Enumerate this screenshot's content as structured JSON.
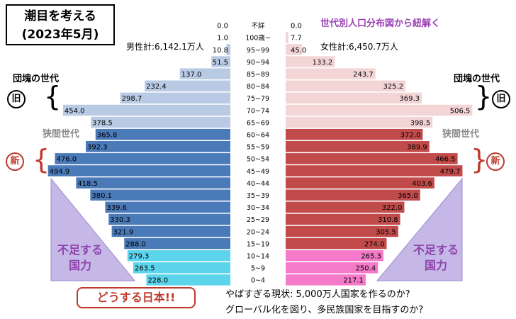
{
  "title_line1": "潮目を考える",
  "title_line2": "(2023年5月)",
  "subtitle": "世代別人口分布図から紐解く",
  "male_total": "男性計:6,142.1万人",
  "female_total": "女性計:6,450.7万人",
  "dankai": "団塊の世代",
  "kyoma": "狭間世代",
  "old_mark": "旧",
  "new_mark": "新",
  "lack_line1": "不足する",
  "lack_line2": "国力",
  "warning": "どうする日本!!",
  "bottom_line1": "やばすぎる現状: 5,000万人国家を作るのか?",
  "bottom_line2": "グローバル化を図り、多民族国家を目指すのか?",
  "colors": {
    "male_old": "#b9cbe4",
    "male_mid": "#4a7ab8",
    "male_young": "#5cd5ec",
    "female_old": "#f3d5d5",
    "female_mid": "#c14a4a",
    "female_young": "#f57ac9",
    "triangle": "#c5b8e6",
    "accent_purple": "#9b3fb5",
    "accent_red": "#c0392b"
  },
  "chart_data": {
    "type": "bar",
    "categories": [
      "不詳",
      "100歳~",
      "95~99",
      "90~94",
      "85~89",
      "80~84",
      "75~79",
      "70~74",
      "65~69",
      "60~64",
      "55~59",
      "50~54",
      "45~49",
      "40~44",
      "35~39",
      "30~34",
      "25~29",
      "20~24",
      "15~19",
      "10~14",
      "5~9",
      "0~4"
    ],
    "male_labels": [
      "0.0",
      "1.0",
      "10.8",
      "51.5",
      "137.0",
      "232.4",
      "298.7",
      "454.0",
      "378.5",
      "365.8",
      "392.3",
      "476.0",
      "494.9",
      "418.5",
      "380.1",
      "339.6",
      "330.3",
      "321.9",
      "288.0",
      "279.3",
      "263.5",
      "228.0"
    ],
    "female_labels": [
      "0.0",
      "7.7",
      "45.0",
      "133.2",
      "243.7",
      "325.2",
      "369.3",
      "506.5",
      "398.5",
      "372.0",
      "389.9",
      "466.5",
      "479.7",
      "403.6",
      "365.0",
      "322.0",
      "310.8",
      "305.5",
      "274.0",
      "265.3",
      "250.4",
      "217.1"
    ],
    "series": [
      {
        "name": "男性",
        "values": [
          0.0,
          1.0,
          10.8,
          51.5,
          137.0,
          232.4,
          298.7,
          454.0,
          378.5,
          365.8,
          392.3,
          476.0,
          494.9,
          418.5,
          380.1,
          339.6,
          330.3,
          321.9,
          288.0,
          279.3,
          263.5,
          228.0
        ]
      },
      {
        "name": "女性",
        "values": [
          0.0,
          7.7,
          45.0,
          133.2,
          243.7,
          325.2,
          369.3,
          506.5,
          398.5,
          372.0,
          389.9,
          466.5,
          479.7,
          403.6,
          365.0,
          322.0,
          310.8,
          305.5,
          274.0,
          265.3,
          250.4,
          217.1
        ]
      }
    ],
    "title": "",
    "xlabel": "",
    "ylabel": ""
  }
}
